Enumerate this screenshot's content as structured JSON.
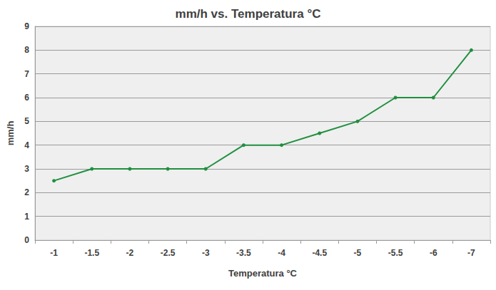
{
  "chart_data": {
    "type": "line",
    "title": "mm/h vs. Temperatura °C",
    "x_label": "Temperatura °C",
    "y_label": "mm/h",
    "categories": [
      "-1",
      "-1.5",
      "-2",
      "-2.5",
      "-3",
      "-3.5",
      "-4",
      "-4.5",
      "-5",
      "-5.5",
      "-6",
      "-7"
    ],
    "values": [
      2.5,
      3,
      3,
      3,
      3,
      4,
      4,
      4.5,
      5,
      6,
      6,
      8
    ],
    "color": "#1f8f3f",
    "marker": "circle",
    "line_style": "solid",
    "ylim": [
      0,
      9
    ],
    "yticks": [
      0,
      1,
      2,
      3,
      4,
      5,
      6,
      7,
      8,
      9
    ],
    "grid": true
  }
}
